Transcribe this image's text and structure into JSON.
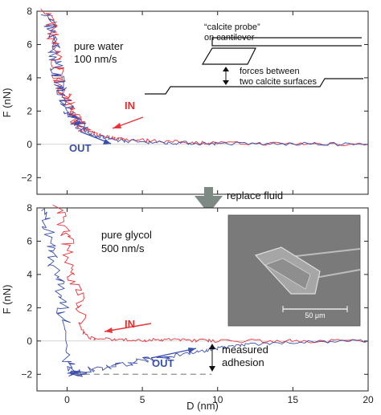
{
  "colors": {
    "in": "#e8343a",
    "out": "#3b4fae",
    "arrow_gray": "#7d8a84",
    "dashed": "#8c8c8c",
    "sem_bg": "#7a7a7a"
  },
  "chart_data": [
    {
      "type": "line",
      "panel": "top",
      "ylabel": "F (nN)",
      "xlim": [
        -2,
        20
      ],
      "ylim": [
        -3,
        8
      ],
      "yticks": [
        -2,
        0,
        2,
        4,
        6,
        8
      ],
      "yticklabels": [
        "−2",
        "0",
        "2",
        "4",
        "6",
        "8"
      ],
      "series": [
        {
          "name": "IN",
          "x": [
            -1.3,
            -1.1,
            -1.0,
            -0.9,
            -0.8,
            -0.7,
            -0.6,
            -0.5,
            -0.4,
            -0.2,
            0,
            0.2,
            0.4,
            0.6,
            0.8,
            1.0,
            1.3,
            1.6,
            2.0,
            2.5,
            3.0,
            3.5,
            4.0,
            5.0,
            6.0,
            7.0,
            8.0,
            9.0,
            10.0,
            12.0,
            14.0,
            16.0,
            18.0,
            20.0
          ],
          "y": [
            8.0,
            7.4,
            6.8,
            6.2,
            5.6,
            5.0,
            4.4,
            3.9,
            3.4,
            2.9,
            2.5,
            2.1,
            1.8,
            1.5,
            1.3,
            1.1,
            0.9,
            0.7,
            0.6,
            0.5,
            0.4,
            0.35,
            0.3,
            0.25,
            0.2,
            0.15,
            0.12,
            0.1,
            0.08,
            0.05,
            0.05,
            0.03,
            0.02,
            0.0
          ]
        },
        {
          "name": "OUT",
          "x": [
            -1.4,
            -1.2,
            -1.05,
            -0.95,
            -0.85,
            -0.75,
            -0.65,
            -0.55,
            -0.45,
            -0.25,
            -0.05,
            0.15,
            0.35,
            0.55,
            0.75,
            1.0,
            1.3,
            1.6,
            2.0,
            2.5,
            3.0,
            3.5,
            4.0,
            5.0,
            6.0,
            7.0,
            8.0,
            9.0,
            10.0,
            12.0,
            14.0,
            16.0,
            18.0,
            20.0
          ],
          "y": [
            7.9,
            7.3,
            6.7,
            6.1,
            5.5,
            4.9,
            4.3,
            3.8,
            3.3,
            2.8,
            2.4,
            2.0,
            1.7,
            1.4,
            1.2,
            1.0,
            0.8,
            0.6,
            0.5,
            0.4,
            0.3,
            0.25,
            0.2,
            0.15,
            0.12,
            0.1,
            0.08,
            0.05,
            0.05,
            0.03,
            0.02,
            0.02,
            0.01,
            0.0
          ]
        }
      ],
      "annotations": {
        "condition_line1": "pure water",
        "condition_line2": "100 nm/s",
        "probe_line1": "“calcite probe”",
        "probe_line2": "on cantilever",
        "forces_line1": "forces between",
        "forces_line2": "two calcite surfaces",
        "in_label": "IN",
        "out_label": "OUT"
      }
    },
    {
      "type": "line",
      "panel": "bottom",
      "xlabel": "D (nm)",
      "ylabel": "F (nN)",
      "xlim": [
        -2,
        20
      ],
      "ylim": [
        -3,
        8
      ],
      "xticks": [
        0,
        5,
        10,
        15,
        20
      ],
      "xticklabels": [
        "0",
        "5",
        "10",
        "15",
        "20"
      ],
      "yticks": [
        -2,
        0,
        2,
        4,
        6,
        8
      ],
      "yticklabels": [
        "−2",
        "0",
        "2",
        "4",
        "6",
        "8"
      ],
      "series": [
        {
          "name": "IN",
          "x": [
            -0.5,
            -0.2,
            0.0,
            0.2,
            0.4,
            0.6,
            0.8,
            1.0,
            1.5,
            2.0,
            3.0,
            4.0,
            5.0,
            6.0,
            7.0,
            8.0,
            9.0,
            10.0,
            12.0,
            14.0,
            16.0,
            18.0,
            20.0
          ],
          "y": [
            8.0,
            7.0,
            6.0,
            5.0,
            4.0,
            3.0,
            2.0,
            0.6,
            0.2,
            0.12,
            0.1,
            0.08,
            0.06,
            0.05,
            0.05,
            0.04,
            0.03,
            0.02,
            0.01,
            0.0,
            0.0,
            0.0,
            0.0
          ]
        },
        {
          "name": "OUT",
          "x": [
            -1.5,
            -1.3,
            -1.1,
            -0.9,
            -0.7,
            -0.5,
            -0.3,
            -0.1,
            0.0,
            0.1,
            0.3,
            0.5,
            0.6,
            0.8,
            1.0,
            2.0,
            3.0,
            4.0,
            5.0,
            6.0,
            7.0,
            8.0,
            9.0,
            9.6,
            10.0,
            11.0,
            12.0,
            14.0,
            16.0,
            18.0,
            20.0
          ],
          "y": [
            8.0,
            7.0,
            6.0,
            5.0,
            4.0,
            3.0,
            2.0,
            1.0,
            -1.0,
            -1.6,
            -1.9,
            -2.0,
            -1.95,
            -1.85,
            -1.8,
            -1.65,
            -1.5,
            -1.35,
            -1.2,
            -1.05,
            -0.9,
            -0.75,
            -0.6,
            -0.5,
            -0.45,
            -0.3,
            -0.2,
            -0.1,
            -0.05,
            0.0,
            0.0
          ]
        }
      ],
      "adhesion_baseline": {
        "y": -2.0,
        "x_start": 0.5,
        "x_end": 9.6
      },
      "annotations": {
        "condition_line1": "pure glycol",
        "condition_line2": "500 nm/s",
        "in_label": "IN",
        "out_label": "OUT",
        "adhesion_line1": "measured",
        "adhesion_line2": "adhesion",
        "scale_bar_label": "50 μm"
      }
    }
  ],
  "between_panels": {
    "label": "replace fluid"
  }
}
